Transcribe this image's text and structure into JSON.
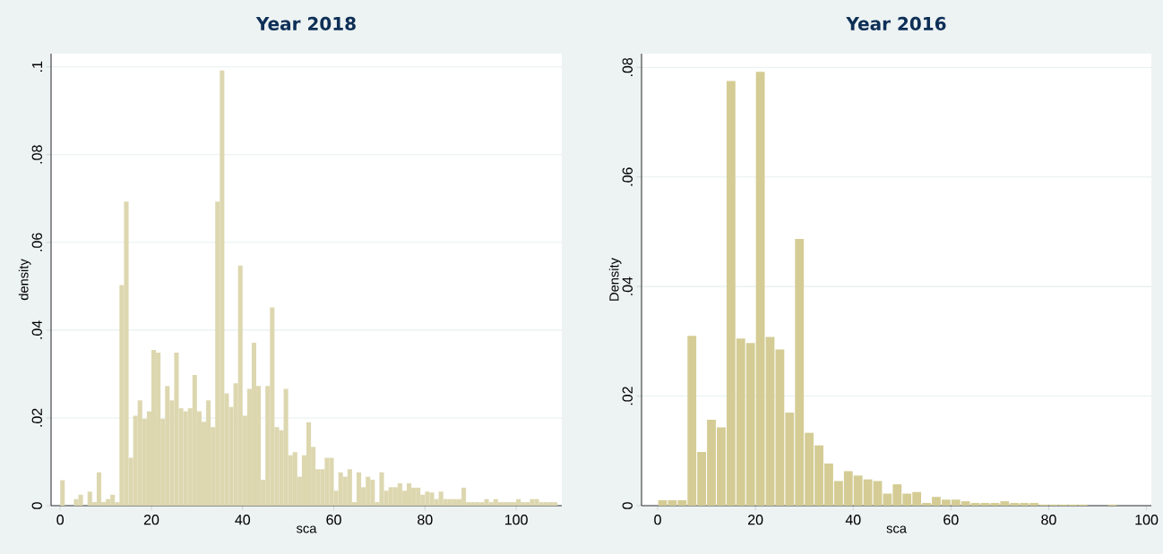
{
  "chart_data": [
    {
      "type": "histogram",
      "title": "Year 2018",
      "xlabel": "sca",
      "ylabel": "density",
      "color": "#ddd7b0",
      "grid": "y",
      "xlim": [
        -2,
        110
      ],
      "ylim": [
        0,
        0.103
      ],
      "xticks": [
        0,
        20,
        40,
        60,
        80,
        100
      ],
      "yticks": [
        0,
        {
          "value": 0.02,
          "label": ".02"
        },
        {
          "value": 0.04,
          "label": ".04"
        },
        {
          "value": 0.06,
          "label": ".06"
        },
        {
          "value": 0.08,
          "label": ".08"
        },
        {
          "value": 0.1,
          "label": ".1"
        }
      ],
      "bins": [
        0,
        1,
        2,
        3,
        4,
        5,
        6,
        7,
        8,
        9,
        10,
        11,
        12,
        13,
        14,
        15,
        16,
        17,
        18,
        19,
        20,
        21,
        22,
        23,
        24,
        25,
        26,
        27,
        28,
        29,
        30,
        31,
        32,
        33,
        34,
        35,
        36,
        37,
        38,
        39,
        40,
        41,
        42,
        43,
        44,
        45,
        46,
        47,
        48,
        49,
        50,
        51,
        52,
        53,
        54,
        55,
        56,
        57,
        58,
        59,
        60,
        61,
        62,
        63,
        64,
        65,
        66,
        67,
        68,
        69,
        70,
        71,
        72,
        73,
        74,
        75,
        76,
        77,
        78,
        79,
        80,
        81,
        82,
        83,
        84,
        85,
        86,
        87,
        88,
        89,
        90,
        91,
        92,
        93,
        94,
        95,
        96,
        97,
        98,
        99,
        100,
        101,
        102,
        103,
        104,
        105,
        106,
        107,
        108,
        109
      ],
      "values": [
        0.0058,
        0,
        0,
        0.0015,
        0.0025,
        0,
        0.0032,
        0.0008,
        0.0076,
        0.0008,
        0.0015,
        0.0025,
        0.0008,
        0.0503,
        0.0693,
        0.0109,
        0.0205,
        0.024,
        0.0198,
        0.0215,
        0.0355,
        0.0349,
        0.0198,
        0.0273,
        0.024,
        0.0349,
        0.0222,
        0.0215,
        0.0222,
        0.0298,
        0.0215,
        0.0191,
        0.024,
        0.0179,
        0.0693,
        0.0992,
        0.0256,
        0.0225,
        0.0279,
        0.0547,
        0.0205,
        0.0266,
        0.0371,
        0.0273,
        0.0059,
        0.0273,
        0.0452,
        0.0179,
        0.0172,
        0.0266,
        0.0115,
        0.0122,
        0.0066,
        0.0115,
        0.019,
        0.0134,
        0.0083,
        0.0083,
        0.0109,
        0.0109,
        0.0034,
        0.0076,
        0.0066,
        0.0083,
        0.0008,
        0.0076,
        0.0042,
        0.0066,
        0.0059,
        0.0008,
        0.0076,
        0.0034,
        0.0042,
        0.0042,
        0.0051,
        0.0034,
        0.0051,
        0.0041,
        0.0041,
        0.0025,
        0.0032,
        0.003,
        0.0015,
        0.0032,
        0.0015,
        0.0015,
        0.0015,
        0.0015,
        0.0041,
        0.0008,
        0.0008,
        0.0008,
        0.0008,
        0.0015,
        0.0008,
        0.0015,
        0.0008,
        0.0008,
        0.0008,
        0.0008,
        0.0015,
        0.0008,
        0.0008,
        0.0015,
        0.0015,
        0.0008,
        0.0008,
        0.0008,
        0.0008
      ]
    },
    {
      "type": "histogram",
      "title": "Year 2016",
      "xlabel": "sca",
      "ylabel": "Density",
      "color": "#d4cc94",
      "grid": "y",
      "xlim": [
        -3.3,
        101
      ],
      "ylim": [
        0,
        0.0825
      ],
      "xticks": [
        0,
        20,
        40,
        60,
        80,
        100
      ],
      "yticks": [
        0,
        {
          "value": 0.02,
          "label": ".02"
        },
        {
          "value": 0.04,
          "label": ".04"
        },
        {
          "value": 0.06,
          "label": ".06"
        },
        {
          "value": 0.08,
          "label": ".08"
        }
      ],
      "bins": [
        0,
        2,
        4,
        6,
        8,
        10,
        12,
        14,
        16,
        18,
        20,
        22,
        24,
        26,
        28,
        30,
        32,
        34,
        36,
        38,
        40,
        42,
        44,
        46,
        48,
        50,
        52,
        54,
        56,
        58,
        60,
        62,
        64,
        66,
        68,
        70,
        72,
        74,
        76,
        78,
        80,
        82,
        84,
        86,
        88,
        90,
        92,
        94
      ],
      "values": [
        0.001,
        0.001,
        0.001,
        0.031,
        0.0098,
        0.0157,
        0.0143,
        0.0775,
        0.0305,
        0.0297,
        0.0792,
        0.0308,
        0.0285,
        0.017,
        0.0487,
        0.0133,
        0.011,
        0.0077,
        0.0045,
        0.0063,
        0.0055,
        0.0048,
        0.0045,
        0.0022,
        0.0039,
        0.0022,
        0.0025,
        0.0005,
        0.0016,
        0.0011,
        0.0011,
        0.0008,
        0.0005,
        0.0005,
        0.0005,
        0.0008,
        0.0005,
        0.0005,
        0.0005,
        0.0002,
        0.0002,
        0.0002,
        0.0002,
        0.0002,
        0,
        0,
        0.0002
      ]
    }
  ]
}
